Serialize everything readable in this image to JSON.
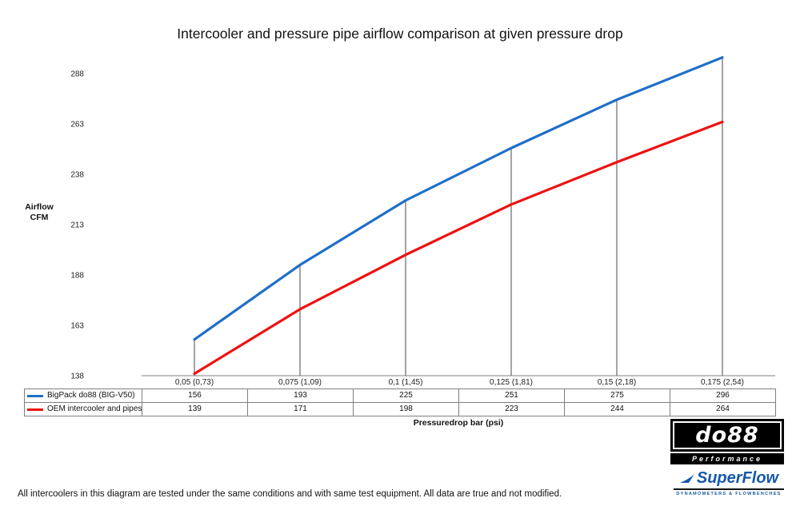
{
  "title": "Intercooler and pressure pipe airflow comparison at given pressure drop",
  "chart_data": {
    "type": "line",
    "categories": [
      "0,05 (0,73)",
      "0,075 (1,09)",
      "0,1 (1,45)",
      "0,125 (1,81)",
      "0,15 (2,18)",
      "0,175 (2,54)"
    ],
    "series": [
      {
        "name": "BigPack do88 (BIG-V50)",
        "color": "#1f6fc8",
        "values": [
          156,
          193,
          225,
          251,
          275,
          296
        ]
      },
      {
        "name": "OEM intercooler and pipes",
        "color": "#ee1111",
        "values": [
          139,
          171,
          198,
          223,
          244,
          264
        ]
      }
    ],
    "title": "Intercooler and pressure pipe airflow comparison at given pressure drop",
    "xlabel": "Pressuredrop bar (psi)",
    "ylabel_lines": [
      "Airflow",
      "CFM"
    ],
    "y_ticks": [
      138,
      163,
      188,
      213,
      238,
      263,
      288
    ],
    "ylim": [
      138,
      297
    ],
    "grid": "off",
    "drop_lines": true,
    "legend_position": "data-table-left"
  },
  "footnote": "All intercoolers in this diagram are tested under the same conditions and with same test equipment. All data are true and not modified.",
  "logos": {
    "do88": {
      "text": "do88",
      "subtext": "Performance"
    },
    "superflow": {
      "text": "SuperFlow",
      "subtext": "DYNAMOMETERS & FLOWBENCHES"
    }
  }
}
